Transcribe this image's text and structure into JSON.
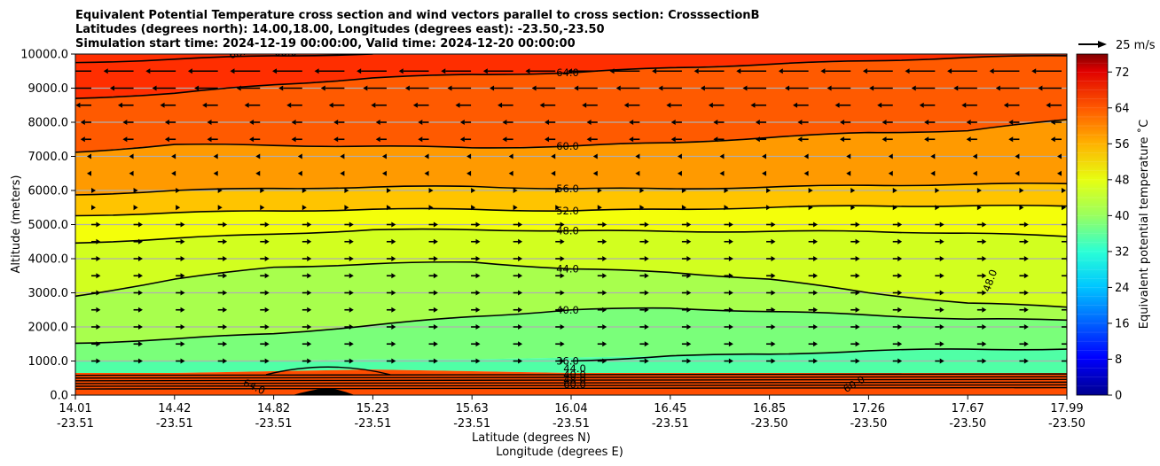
{
  "chart_data": {
    "type": "filled-contour",
    "title_lines": [
      "Equivalent Potential Temperature cross section and wind vectors parallel to cross section: CrosssectionB",
      "Latitudes (degrees north): 14.00,18.00, Longitudes (degrees east): -23.50,-23.50",
      "Simulation start time: 2024-12-19 00:00:00, Valid time: 2024-12-20 00:00:00"
    ],
    "ylabel": "Altitude (meters)",
    "xlabel_lat": "Latitude (degrees N)",
    "xlabel_lon": "Longitude (degrees E)",
    "ylim": [
      0,
      10000
    ],
    "y_ticks": [
      0,
      1000,
      2000,
      3000,
      4000,
      5000,
      6000,
      7000,
      8000,
      9000,
      10000
    ],
    "y_tick_labels": [
      "0.0",
      "1000.0",
      "2000.0",
      "3000.0",
      "4000.0",
      "5000.0",
      "6000.0",
      "7000.0",
      "8000.0",
      "9000.0",
      "10000.0"
    ],
    "x_ticks": [
      {
        "lat": "14.01",
        "lon": "-23.51"
      },
      {
        "lat": "14.42",
        "lon": "-23.51"
      },
      {
        "lat": "14.82",
        "lon": "-23.51"
      },
      {
        "lat": "15.23",
        "lon": "-23.51"
      },
      {
        "lat": "15.63",
        "lon": "-23.51"
      },
      {
        "lat": "16.04",
        "lon": "-23.51"
      },
      {
        "lat": "16.45",
        "lon": "-23.51"
      },
      {
        "lat": "16.85",
        "lon": "-23.50"
      },
      {
        "lat": "17.26",
        "lon": "-23.50"
      },
      {
        "lat": "17.67",
        "lon": "-23.50"
      },
      {
        "lat": "17.99",
        "lon": "-23.50"
      }
    ],
    "colorbar": {
      "label": "Equivalent potential temperature $^\\circ$C",
      "label_text": "Equivalent potential temperature ˚C",
      "range": [
        0,
        76
      ],
      "ticks": [
        0,
        8,
        16,
        24,
        32,
        40,
        48,
        56,
        64,
        72
      ],
      "tick_labels": [
        "0",
        "8",
        "16",
        "24",
        "32",
        "40",
        "48",
        "56",
        "64",
        "72"
      ]
    },
    "quiver_key": {
      "label": "25 m/s",
      "speed": 25
    },
    "contour_lines": [
      {
        "level": 36,
        "label": "36.0",
        "z": [
          null,
          null,
          null,
          null,
          null,
          1000,
          1150,
          1200,
          1300,
          1350,
          1350
        ]
      },
      {
        "level": 40,
        "label": "40.0",
        "z": [
          1520,
          1650,
          1800,
          2050,
          2300,
          2500,
          2550,
          2450,
          2350,
          2230,
          2200
        ]
      },
      {
        "level": 44,
        "label": "44.0",
        "z": [
          2900,
          3400,
          3750,
          3850,
          3900,
          3700,
          3600,
          3400,
          3000,
          2700,
          2580
        ]
      },
      {
        "level": 48,
        "label": "48.0",
        "z": [
          4460,
          4600,
          4720,
          4850,
          4850,
          4820,
          4800,
          4800,
          4800,
          4750,
          4650
        ]
      },
      {
        "level": 52,
        "label": "52.0",
        "z": [
          5260,
          5350,
          5400,
          5450,
          5450,
          5400,
          5450,
          5500,
          5550,
          5550,
          5540
        ]
      },
      {
        "level": 56,
        "label": "56.0",
        "z": [
          5870,
          6000,
          6060,
          6100,
          6120,
          6050,
          6050,
          6100,
          6150,
          6180,
          6200
        ]
      },
      {
        "level": 60,
        "label": "60.0",
        "z": [
          7120,
          7350,
          7320,
          7300,
          7250,
          7300,
          7400,
          7550,
          7700,
          7750,
          8080
        ]
      },
      {
        "level": 64,
        "label": "64.0",
        "z": [
          8700,
          8850,
          9100,
          9300,
          9400,
          9450,
          9600,
          9700,
          9800,
          9900,
          9950
        ]
      },
      {
        "level": 68,
        "label": "68.0",
        "z": [
          9750,
          9850,
          9950,
          10000,
          null,
          null,
          null,
          null,
          null,
          null,
          null
        ]
      }
    ],
    "extra_contour_labels": [
      "48.0",
      "60.0",
      "64.0",
      "68.0",
      "68.0",
      "40.0",
      "44.0",
      "48.0",
      "60.0"
    ],
    "colors": {
      "near_surface": "#ff4d00",
      "low": "#57ffa3",
      "mid": "#d6ff1a",
      "upper": "#ffb300",
      "top": "#ff3300",
      "terrain": "#000000"
    }
  }
}
